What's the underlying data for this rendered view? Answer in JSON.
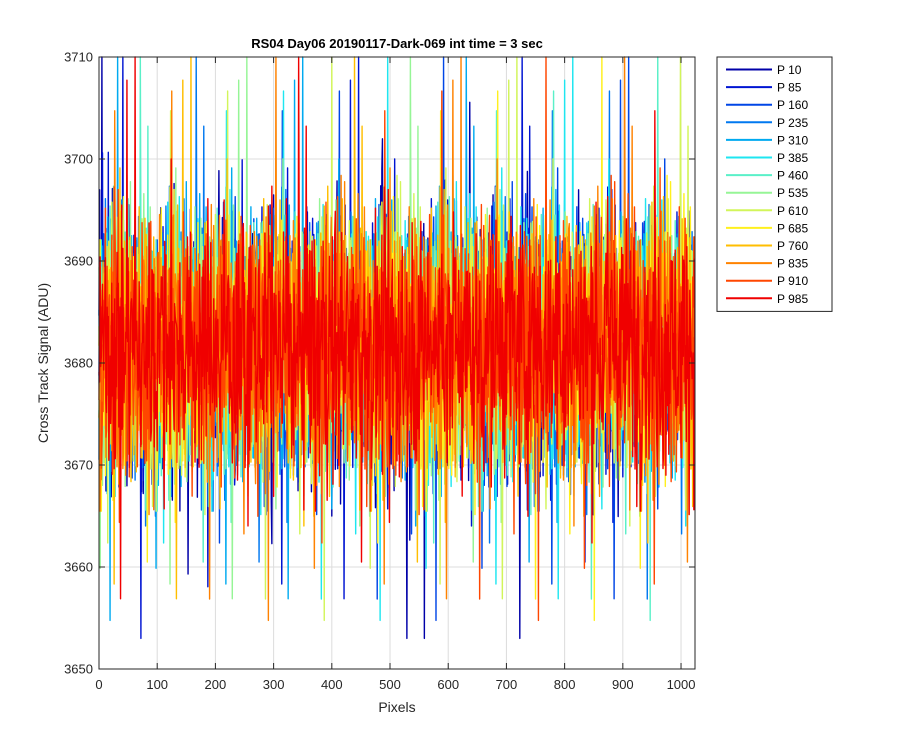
{
  "chart_data": {
    "type": "line",
    "title": "RS04 Day06 20190117-Dark-069 int time = 3 sec",
    "xlabel": "Pixels",
    "ylabel": "Cross Track Signal (ADU)",
    "xlim": [
      0,
      1024
    ],
    "ylim": [
      3650,
      3710
    ],
    "xticks": [
      0,
      100,
      200,
      300,
      400,
      500,
      600,
      700,
      800,
      900,
      1000
    ],
    "yticks": [
      3650,
      3660,
      3670,
      3680,
      3690,
      3700,
      3710
    ],
    "grid": true,
    "legend_position": "outside-right",
    "pixel_count": 1024,
    "signal_mean": 3682,
    "signal_min": 3653,
    "signal_max": 3710,
    "series": [
      {
        "name": "P 10",
        "color": "#0000a8"
      },
      {
        "name": "P 85",
        "color": "#0014d2"
      },
      {
        "name": "P 160",
        "color": "#0046e6"
      },
      {
        "name": "P 235",
        "color": "#0078f0"
      },
      {
        "name": "P 310",
        "color": "#00aaf0"
      },
      {
        "name": "P 385",
        "color": "#1ee6f0"
      },
      {
        "name": "P 460",
        "color": "#5af0c8"
      },
      {
        "name": "P 535",
        "color": "#96f596"
      },
      {
        "name": "P 610",
        "color": "#d2f55a"
      },
      {
        "name": "P 685",
        "color": "#fff01e"
      },
      {
        "name": "P 760",
        "color": "#ffbe00"
      },
      {
        "name": "P 835",
        "color": "#ff8200"
      },
      {
        "name": "P 910",
        "color": "#ff4600"
      },
      {
        "name": "P 985",
        "color": "#f00000"
      }
    ]
  }
}
